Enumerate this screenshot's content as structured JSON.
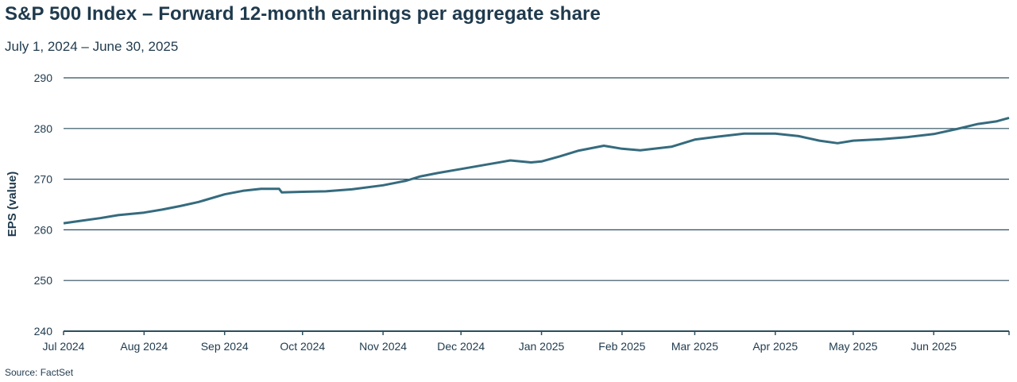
{
  "chart_data": {
    "type": "line",
    "title": "S&P 500 Index – Forward 12-month earnings per aggregate share",
    "subtitle": "July 1, 2024 – June 30, 2025",
    "xlabel": "",
    "ylabel": "EPS (value)",
    "source": "Source: FactSet",
    "ylim": [
      240,
      290
    ],
    "yticks": [
      240,
      250,
      260,
      270,
      280,
      290
    ],
    "xlim": [
      "2024-07-01",
      "2025-06-30"
    ],
    "xticks": [
      {
        "date": "2024-07-01",
        "label": "Jul 2024"
      },
      {
        "date": "2024-08-01",
        "label": "Aug 2024"
      },
      {
        "date": "2024-09-01",
        "label": "Sep 2024"
      },
      {
        "date": "2024-10-01",
        "label": "Oct 2024"
      },
      {
        "date": "2024-11-01",
        "label": "Nov 2024"
      },
      {
        "date": "2024-12-01",
        "label": "Dec 2024"
      },
      {
        "date": "2025-01-01",
        "label": "Jan 2025"
      },
      {
        "date": "2025-02-01",
        "label": "Feb 2025"
      },
      {
        "date": "2025-03-01",
        "label": "Mar 2025"
      },
      {
        "date": "2025-04-01",
        "label": "Apr 2025"
      },
      {
        "date": "2025-05-01",
        "label": "May 2025"
      },
      {
        "date": "2025-06-01",
        "label": "Jun 2025"
      }
    ],
    "grid": true,
    "line_color": "#356b7e",
    "series": [
      {
        "points": [
          [
            "2024-07-01",
            261.3
          ],
          [
            "2024-07-08",
            261.8
          ],
          [
            "2024-07-15",
            262.3
          ],
          [
            "2024-07-22",
            262.9
          ],
          [
            "2024-08-01",
            263.4
          ],
          [
            "2024-08-08",
            264.0
          ],
          [
            "2024-08-15",
            264.7
          ],
          [
            "2024-08-22",
            265.5
          ],
          [
            "2024-09-01",
            267.0
          ],
          [
            "2024-09-08",
            267.7
          ],
          [
            "2024-09-15",
            268.1
          ],
          [
            "2024-09-22",
            268.1
          ],
          [
            "2024-09-23",
            267.4
          ],
          [
            "2024-10-01",
            267.5
          ],
          [
            "2024-10-10",
            267.6
          ],
          [
            "2024-10-20",
            268.0
          ],
          [
            "2024-11-01",
            268.8
          ],
          [
            "2024-11-10",
            269.7
          ],
          [
            "2024-11-15",
            270.5
          ],
          [
            "2024-11-22",
            271.2
          ],
          [
            "2024-12-01",
            272.0
          ],
          [
            "2024-12-10",
            272.8
          ],
          [
            "2024-12-20",
            273.7
          ],
          [
            "2024-12-28",
            273.3
          ],
          [
            "2025-01-01",
            273.5
          ],
          [
            "2025-01-08",
            274.5
          ],
          [
            "2025-01-15",
            275.6
          ],
          [
            "2025-01-25",
            276.6
          ],
          [
            "2025-02-01",
            276.0
          ],
          [
            "2025-02-08",
            275.7
          ],
          [
            "2025-02-20",
            276.4
          ],
          [
            "2025-03-01",
            277.8
          ],
          [
            "2025-03-10",
            278.4
          ],
          [
            "2025-03-20",
            279.0
          ],
          [
            "2025-04-01",
            279.0
          ],
          [
            "2025-04-10",
            278.5
          ],
          [
            "2025-04-18",
            277.6
          ],
          [
            "2025-04-25",
            277.1
          ],
          [
            "2025-05-01",
            277.6
          ],
          [
            "2025-05-12",
            277.9
          ],
          [
            "2025-05-22",
            278.3
          ],
          [
            "2025-06-01",
            278.9
          ],
          [
            "2025-06-10",
            279.9
          ],
          [
            "2025-06-18",
            280.9
          ],
          [
            "2025-06-25",
            281.4
          ],
          [
            "2025-06-30",
            282.1
          ]
        ]
      }
    ]
  }
}
